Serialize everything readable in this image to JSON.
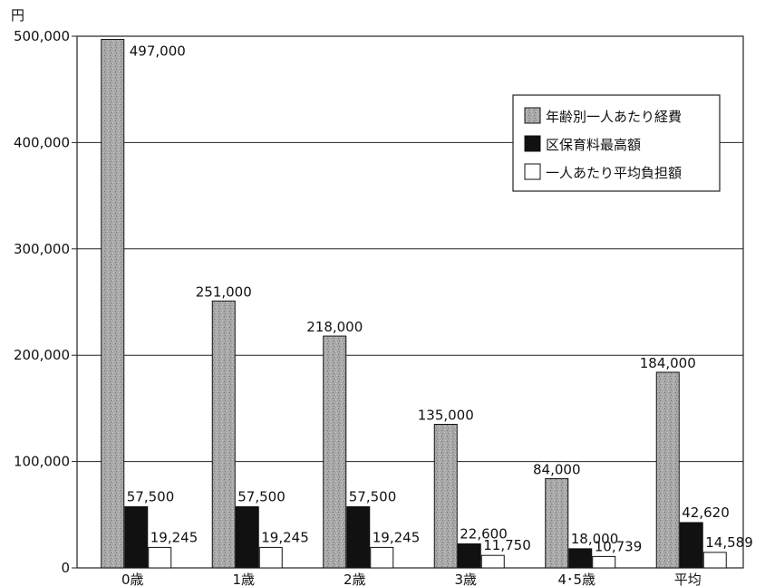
{
  "chart_data": {
    "type": "bar",
    "unit_label": "円",
    "categories": [
      "0歳",
      "1歳",
      "2歳",
      "3歳",
      "4･5歳",
      "平均"
    ],
    "series": [
      {
        "name": "年齢別一人あたり経費",
        "values": [
          497000,
          251000,
          218000,
          135000,
          84000,
          184000
        ],
        "labels": [
          "497,000",
          "251,000",
          "218,000",
          "135,000",
          "84,000",
          "184,000"
        ],
        "color": "#a8a8a8"
      },
      {
        "name": "区保育料最高額",
        "values": [
          57500,
          57500,
          57500,
          22600,
          18000,
          42620
        ],
        "labels": [
          "57,500",
          "57,500",
          "57,500",
          "22,600",
          "18,000",
          "42,620"
        ],
        "color": "#111111"
      },
      {
        "name": "一人あたり平均負担額",
        "values": [
          19245,
          19245,
          19245,
          11750,
          10739,
          14589
        ],
        "labels": [
          "19,245",
          "19,245",
          "19,245",
          "11,750",
          "10,739",
          "14,589"
        ],
        "color": "#ffffff"
      }
    ],
    "yticks": [
      0,
      100000,
      200000,
      300000,
      400000,
      500000
    ],
    "ytick_labels": [
      "0",
      "100,000",
      "200,000",
      "300,000",
      "400,000",
      "500,000"
    ],
    "ylim": [
      0,
      500000
    ],
    "grid": true,
    "legend_position": "top-right"
  }
}
